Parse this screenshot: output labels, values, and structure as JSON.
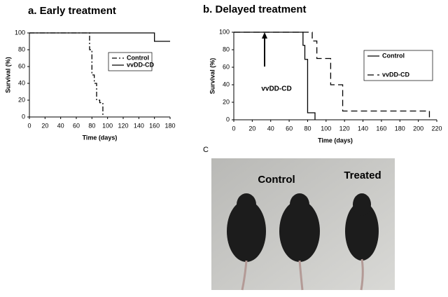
{
  "chart_data": [
    {
      "type": "line",
      "title": "a.  Early treatment",
      "xlabel": "Time (days)",
      "ylabel": "Survival (%)",
      "xlim": [
        0,
        180
      ],
      "xticks": [
        0,
        20,
        40,
        60,
        80,
        100,
        120,
        140,
        160,
        180
      ],
      "ylim": [
        0,
        100
      ],
      "yticks": [
        0,
        20,
        40,
        60,
        80,
        100
      ],
      "series": [
        {
          "name": "Control",
          "color": "#000000",
          "dash": "7 3 2 3",
          "x": [
            0,
            77,
            77,
            80,
            80,
            83,
            83,
            86,
            86,
            90,
            90,
            94,
            94
          ],
          "values": [
            100,
            100,
            80,
            80,
            50,
            50,
            40,
            40,
            20,
            20,
            17,
            17,
            0
          ]
        },
        {
          "name": "vvDD-CD",
          "color": "#000000",
          "dash": "none",
          "x": [
            0,
            160,
            160,
            180
          ],
          "values": [
            100,
            100,
            90,
            90
          ]
        }
      ]
    },
    {
      "type": "line",
      "title": "b.  Delayed treatment",
      "xlabel": "Time (days)",
      "ylabel": "Survival (%)",
      "annotation": "vvDD-CD",
      "xlim": [
        0,
        220
      ],
      "xticks": [
        0,
        20,
        40,
        60,
        80,
        100,
        120,
        140,
        160,
        180,
        200,
        220
      ],
      "ylim": [
        0,
        100
      ],
      "yticks": [
        0,
        20,
        40,
        60,
        80,
        100
      ],
      "series": [
        {
          "name": "Control",
          "color": "#000000",
          "dash": "none",
          "x": [
            0,
            75,
            75,
            77,
            77,
            80,
            80,
            88,
            88
          ],
          "values": [
            100,
            100,
            85,
            85,
            69,
            69,
            8,
            8,
            0
          ]
        },
        {
          "name": "vvDD-CD",
          "color": "#000000",
          "dash": "9 5",
          "x": [
            0,
            85,
            85,
            90,
            90,
            105,
            105,
            118,
            118,
            212,
            212
          ],
          "values": [
            100,
            100,
            90,
            90,
            70,
            70,
            40,
            40,
            10,
            10,
            0
          ]
        }
      ]
    }
  ],
  "photo": {
    "panel_label": "C",
    "labels": [
      "Control",
      "Treated"
    ]
  }
}
